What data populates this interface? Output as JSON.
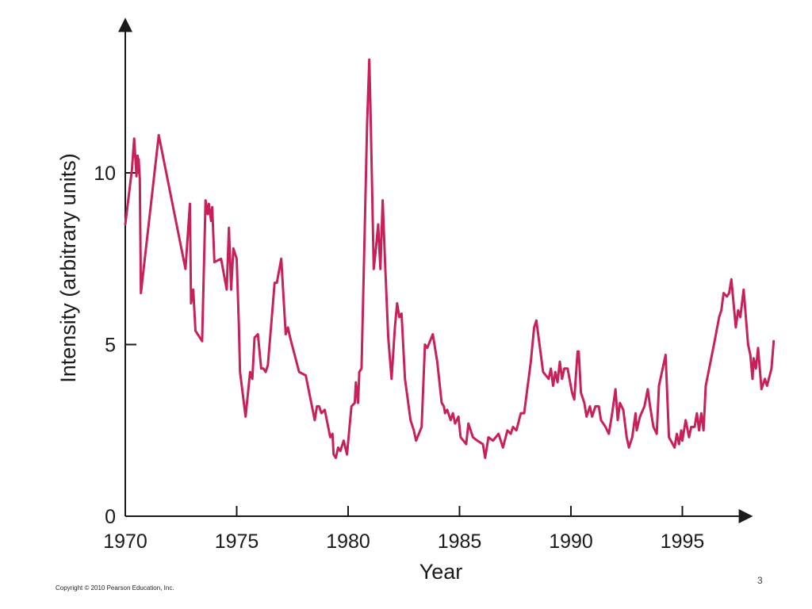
{
  "footer": {
    "copyright": "Copyright © 2010 Pearson Education, Inc.",
    "page_number": "3"
  },
  "colors": {
    "series": "#c8205a",
    "axis": "#1a1a1a"
  },
  "chart_data": {
    "type": "line",
    "title": "",
    "xlabel": "Year",
    "ylabel": "Intensity (arbitrary units)",
    "xlim": [
      1970,
      1998.3
    ],
    "ylim": [
      0,
      14
    ],
    "x_ticks": [
      1970,
      1975,
      1980,
      1985,
      1990,
      1995
    ],
    "y_ticks": [
      0,
      5,
      10
    ],
    "grid": false,
    "series": [
      {
        "values": [
          [
            1970.0,
            8.5
          ],
          [
            1970.3,
            10.1
          ],
          [
            1970.4,
            11.0
          ],
          [
            1970.5,
            9.9
          ],
          [
            1970.55,
            10.5
          ],
          [
            1970.6,
            10.0
          ],
          [
            1970.6,
            10.4
          ],
          [
            1970.65,
            9.8
          ],
          [
            1970.7,
            6.5
          ],
          [
            1971.5,
            11.1
          ],
          [
            1972.7,
            7.2
          ],
          [
            1972.9,
            9.1
          ],
          [
            1972.95,
            6.2
          ],
          [
            1973.05,
            6.6
          ],
          [
            1973.15,
            5.4
          ],
          [
            1973.45,
            5.1
          ],
          [
            1973.6,
            9.2
          ],
          [
            1973.7,
            8.8
          ],
          [
            1973.75,
            9.1
          ],
          [
            1973.85,
            8.6
          ],
          [
            1973.9,
            9.0
          ],
          [
            1974.0,
            7.4
          ],
          [
            1974.3,
            7.5
          ],
          [
            1974.55,
            6.6
          ],
          [
            1974.65,
            8.4
          ],
          [
            1974.75,
            6.6
          ],
          [
            1974.85,
            7.8
          ],
          [
            1975.0,
            7.5
          ],
          [
            1975.1,
            5.5
          ],
          [
            1975.15,
            4.2
          ],
          [
            1975.4,
            2.9
          ],
          [
            1975.6,
            4.2
          ],
          [
            1975.7,
            4.0
          ],
          [
            1975.8,
            5.2
          ],
          [
            1975.95,
            5.3
          ],
          [
            1976.1,
            4.3
          ],
          [
            1976.2,
            4.3
          ],
          [
            1976.3,
            4.2
          ],
          [
            1976.4,
            4.4
          ],
          [
            1976.6,
            6.0
          ],
          [
            1976.7,
            6.8
          ],
          [
            1976.8,
            6.8
          ],
          [
            1977.0,
            7.5
          ],
          [
            1977.2,
            5.3
          ],
          [
            1977.3,
            5.5
          ],
          [
            1977.4,
            5.2
          ],
          [
            1977.8,
            4.2
          ],
          [
            1978.1,
            4.1
          ],
          [
            1978.5,
            2.8
          ],
          [
            1978.6,
            3.2
          ],
          [
            1978.7,
            3.2
          ],
          [
            1978.8,
            3.0
          ],
          [
            1978.95,
            3.1
          ],
          [
            1979.2,
            2.3
          ],
          [
            1979.3,
            2.4
          ],
          [
            1979.35,
            1.8
          ],
          [
            1979.45,
            1.7
          ],
          [
            1979.55,
            2.0
          ],
          [
            1979.65,
            1.9
          ],
          [
            1979.8,
            2.2
          ],
          [
            1979.95,
            1.8
          ],
          [
            1980.15,
            3.2
          ],
          [
            1980.3,
            3.3
          ],
          [
            1980.35,
            3.9
          ],
          [
            1980.45,
            3.3
          ],
          [
            1980.5,
            4.2
          ],
          [
            1980.6,
            4.3
          ],
          [
            1980.75,
            8.5
          ],
          [
            1980.85,
            11.4
          ],
          [
            1980.95,
            13.3
          ],
          [
            1981.0,
            12.0
          ],
          [
            1981.15,
            7.2
          ],
          [
            1981.25,
            7.8
          ],
          [
            1981.35,
            8.5
          ],
          [
            1981.45,
            7.2
          ],
          [
            1981.55,
            9.2
          ],
          [
            1981.65,
            7.5
          ],
          [
            1981.8,
            5.2
          ],
          [
            1981.95,
            4.0
          ],
          [
            1982.1,
            5.5
          ],
          [
            1982.2,
            6.2
          ],
          [
            1982.3,
            5.8
          ],
          [
            1982.4,
            5.9
          ],
          [
            1982.55,
            4.0
          ],
          [
            1982.8,
            2.8
          ],
          [
            1982.95,
            2.5
          ],
          [
            1983.05,
            2.2
          ],
          [
            1983.3,
            2.6
          ],
          [
            1983.45,
            5.0
          ],
          [
            1983.55,
            4.9
          ],
          [
            1983.8,
            5.3
          ],
          [
            1984.0,
            4.5
          ],
          [
            1984.2,
            3.3
          ],
          [
            1984.3,
            3.2
          ],
          [
            1984.35,
            3.0
          ],
          [
            1984.45,
            3.1
          ],
          [
            1984.6,
            2.8
          ],
          [
            1984.7,
            3.0
          ],
          [
            1984.8,
            2.7
          ],
          [
            1984.95,
            2.9
          ],
          [
            1985.05,
            2.3
          ],
          [
            1985.3,
            2.1
          ],
          [
            1985.4,
            2.7
          ],
          [
            1985.6,
            2.3
          ],
          [
            1985.8,
            2.2
          ],
          [
            1986.05,
            2.1
          ],
          [
            1986.15,
            1.7
          ],
          [
            1986.3,
            2.3
          ],
          [
            1986.5,
            2.2
          ],
          [
            1986.75,
            2.4
          ],
          [
            1986.95,
            2.0
          ],
          [
            1987.15,
            2.5
          ],
          [
            1987.3,
            2.4
          ],
          [
            1987.4,
            2.6
          ],
          [
            1987.55,
            2.5
          ],
          [
            1987.75,
            3.0
          ],
          [
            1987.9,
            3.0
          ],
          [
            1988.2,
            4.5
          ],
          [
            1988.35,
            5.5
          ],
          [
            1988.45,
            5.7
          ],
          [
            1988.75,
            4.2
          ],
          [
            1989.0,
            4.0
          ],
          [
            1989.1,
            4.3
          ],
          [
            1989.2,
            3.8
          ],
          [
            1989.3,
            4.2
          ],
          [
            1989.4,
            3.9
          ],
          [
            1989.5,
            4.5
          ],
          [
            1989.6,
            4.0
          ],
          [
            1989.7,
            4.3
          ],
          [
            1989.85,
            4.3
          ],
          [
            1990.05,
            3.6
          ],
          [
            1990.15,
            3.4
          ],
          [
            1990.3,
            4.8
          ],
          [
            1990.35,
            4.8
          ],
          [
            1990.45,
            3.6
          ],
          [
            1990.6,
            3.3
          ],
          [
            1990.7,
            2.9
          ],
          [
            1990.85,
            3.2
          ],
          [
            1990.95,
            2.9
          ],
          [
            1991.1,
            3.2
          ],
          [
            1991.25,
            3.2
          ],
          [
            1991.35,
            2.8
          ],
          [
            1991.55,
            2.6
          ],
          [
            1991.7,
            2.4
          ],
          [
            1991.85,
            3.0
          ],
          [
            1992.0,
            3.7
          ],
          [
            1992.1,
            2.8
          ],
          [
            1992.2,
            3.3
          ],
          [
            1992.35,
            3.1
          ],
          [
            1992.5,
            2.3
          ],
          [
            1992.6,
            2.0
          ],
          [
            1992.75,
            2.3
          ],
          [
            1992.9,
            3.0
          ],
          [
            1992.95,
            2.5
          ],
          [
            1993.1,
            2.9
          ],
          [
            1993.3,
            3.2
          ],
          [
            1993.45,
            3.7
          ],
          [
            1993.55,
            3.2
          ],
          [
            1993.7,
            2.6
          ],
          [
            1993.85,
            2.4
          ],
          [
            1993.95,
            3.8
          ],
          [
            1994.25,
            4.7
          ],
          [
            1994.4,
            2.3
          ],
          [
            1994.65,
            2.0
          ],
          [
            1994.75,
            2.4
          ],
          [
            1994.85,
            2.1
          ],
          [
            1994.95,
            2.5
          ],
          [
            1995.0,
            2.2
          ],
          [
            1995.15,
            2.8
          ],
          [
            1995.3,
            2.3
          ],
          [
            1995.4,
            2.6
          ],
          [
            1995.55,
            2.6
          ],
          [
            1995.65,
            3.0
          ],
          [
            1995.75,
            2.5
          ],
          [
            1995.85,
            3.0
          ],
          [
            1995.95,
            2.5
          ],
          [
            1996.05,
            3.8
          ],
          [
            1996.45,
            5.1
          ],
          [
            1996.65,
            5.8
          ],
          [
            1996.75,
            6.0
          ],
          [
            1996.85,
            6.5
          ],
          [
            1997.0,
            6.4
          ],
          [
            1997.1,
            6.5
          ],
          [
            1997.2,
            6.9
          ],
          [
            1997.4,
            5.5
          ],
          [
            1997.5,
            6.0
          ],
          [
            1997.6,
            5.8
          ],
          [
            1997.75,
            6.6
          ],
          [
            1997.95,
            5.0
          ],
          [
            1998.05,
            4.7
          ],
          [
            1998.15,
            4.0
          ],
          [
            1998.2,
            4.6
          ],
          [
            1998.3,
            4.3
          ],
          [
            1998.4,
            4.9
          ],
          [
            1998.55,
            3.7
          ],
          [
            1998.7,
            4.0
          ],
          [
            1998.8,
            3.8
          ],
          [
            1999.0,
            4.3
          ],
          [
            1999.1,
            5.1
          ]
        ]
      }
    ]
  }
}
